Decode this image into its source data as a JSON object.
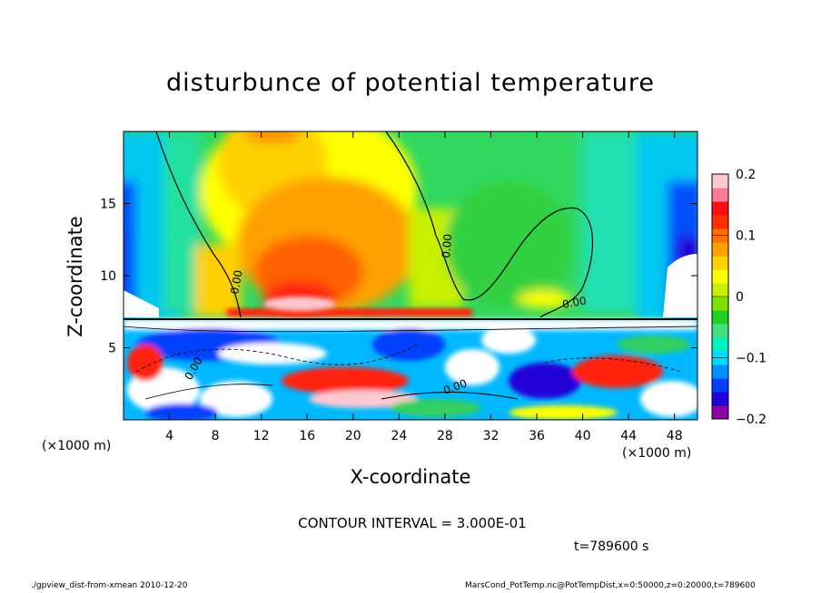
{
  "header": {
    "title": "disturbunce of potential temperature"
  },
  "chart_data": {
    "type": "heatmap",
    "title": "disturbunce of potential temperature",
    "xlabel": "X-coordinate",
    "ylabel": "Z-coordinate",
    "x_unit_label": "(×1000 m)",
    "x_unit_label_right": "(×1000 m)",
    "xlim": [
      0,
      50
    ],
    "ylim": [
      0,
      20
    ],
    "xticks": [
      4,
      8,
      12,
      16,
      20,
      24,
      28,
      32,
      36,
      40,
      44,
      48
    ],
    "yticks": [
      5,
      10,
      15
    ],
    "colorbar": {
      "range": [
        -0.2,
        0.2
      ],
      "tick_values": [
        0.2,
        0.1,
        0,
        -0.1,
        -0.2
      ],
      "tick_labels": [
        "0.2",
        "0.1",
        "0",
        "−0.1",
        "−0.2"
      ],
      "colors": [
        "#8b00a8",
        "#2200d8",
        "#0040ff",
        "#0090ff",
        "#00d8ff",
        "#00f0c0",
        "#40e080",
        "#20d020",
        "#80e000",
        "#c8f000",
        "#ffff00",
        "#ffd000",
        "#ffa000",
        "#ff7000",
        "#ff3000",
        "#ff1010",
        "#ff7a98",
        "#ffc8d0"
      ]
    },
    "contour_labels": [
      "0.00",
      "0.00",
      "0.00",
      "0.00",
      "0.00"
    ]
  },
  "annotations": {
    "contour_interval": "CONTOUR INTERVAL = 3.000E-01",
    "time": "t=789600 s",
    "footer_left": "./gpview_dist-from-xmean  2010-12-20",
    "footer_right": "MarsCond_PotTemp.nc@PotTempDist,x=0:50000,z=0:20000,t=789600"
  }
}
